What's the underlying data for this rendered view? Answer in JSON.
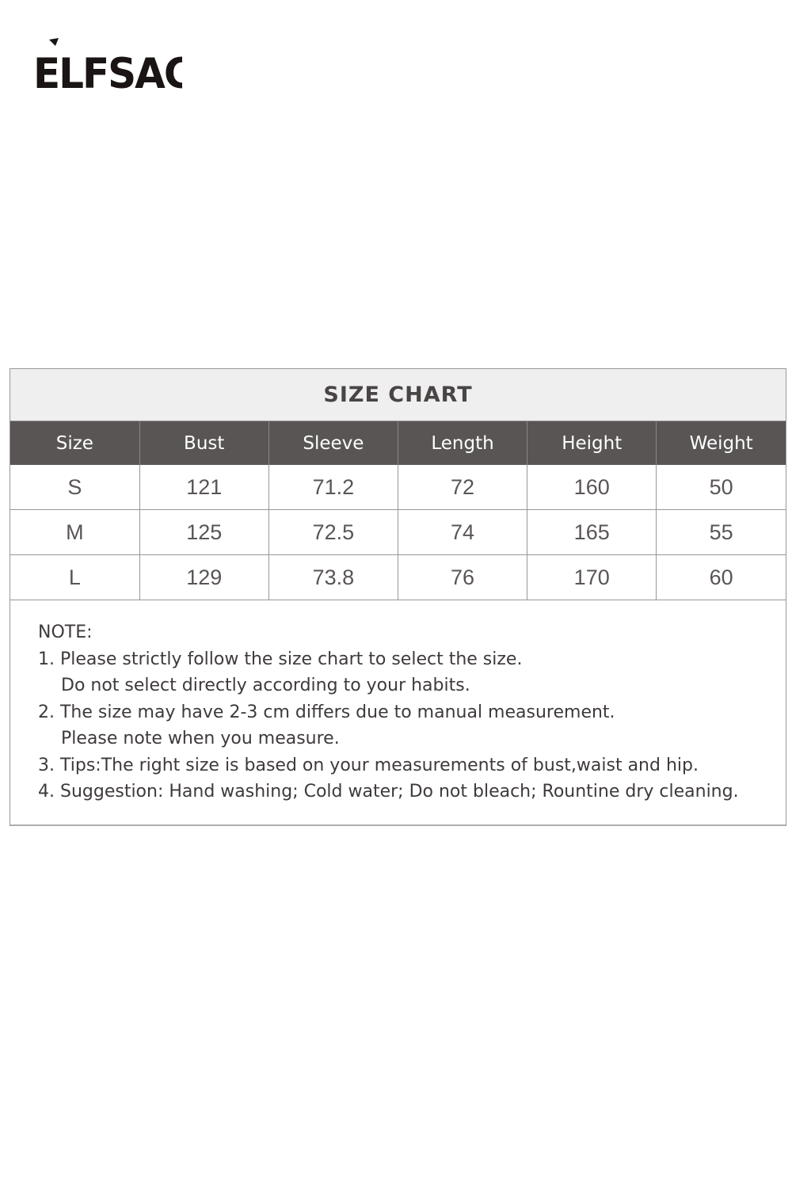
{
  "brand": {
    "logo_text": "ELFSACK"
  },
  "size_chart": {
    "title": "SIZE CHART",
    "columns": [
      "Size",
      "Bust",
      "Sleeve",
      "Length",
      "Height",
      "Weight"
    ],
    "rows": [
      [
        "S",
        "121",
        "71.2",
        "72",
        "160",
        "50"
      ],
      [
        "M",
        "125",
        "72.5",
        "74",
        "165",
        "55"
      ],
      [
        "L",
        "129",
        "73.8",
        "76",
        "170",
        "60"
      ]
    ],
    "header_color": "#5a5555"
  },
  "note": {
    "heading": "NOTE:",
    "lines": [
      "1. Please strictly follow the size chart to select the size.",
      "Do not select directly according to your habits.",
      "2. The size may have 2-3 cm differs due to manual measurement.",
      "Please note when you measure.",
      "3. Tips:The right size is based on your measurements of bust,waist and hip.",
      "4. Suggestion: Hand washing; Cold water; Do not bleach; Rountine dry cleaning."
    ]
  }
}
